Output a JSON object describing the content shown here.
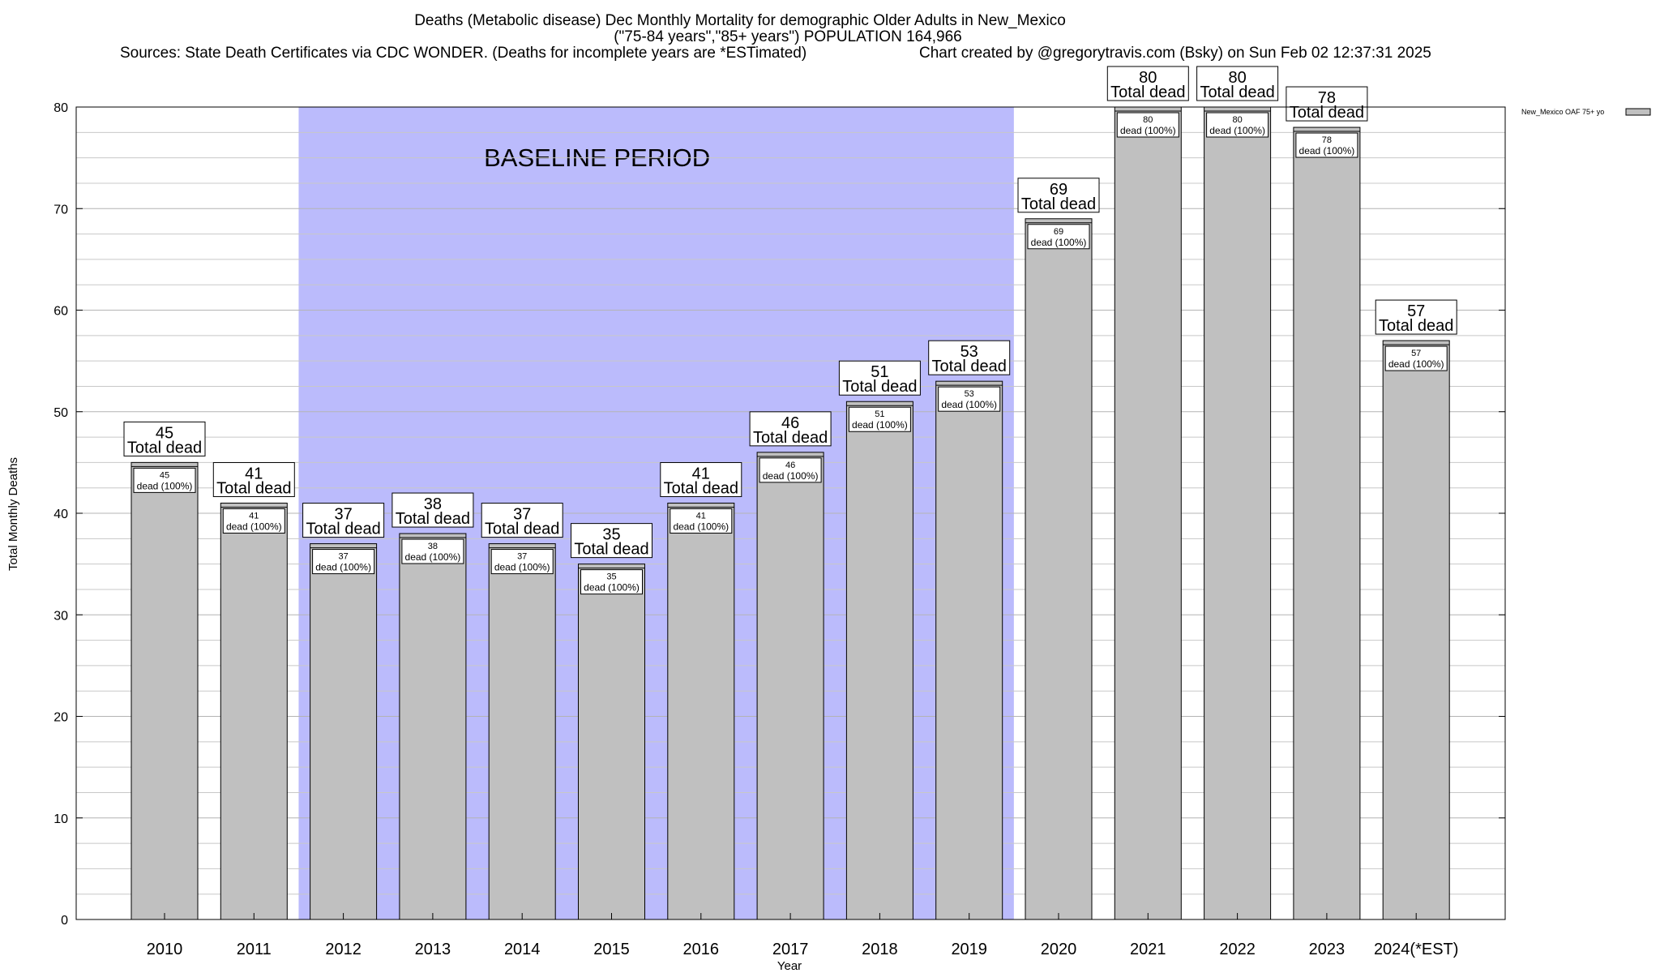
{
  "chart_data": {
    "type": "bar",
    "title_line1": "Deaths (Metabolic disease) Dec Monthly Mortality for demographic Older Adults in New_Mexico",
    "title_line2": "(\"75-84 years\",\"85+ years\") POPULATION 164,966",
    "title_line3_left": "Sources: State Death Certificates via CDC WONDER. (Deaths for incomplete years are *ESTimated)",
    "title_line3_right": "Chart created by @gregorytravis.com (Bsky) on Sun Feb 02 12:37:31 2025",
    "xlabel": "Year",
    "ylabel": "Total Monthly Deaths",
    "ylim": [
      0,
      80
    ],
    "yticks": [
      0,
      10,
      20,
      30,
      40,
      50,
      60,
      70,
      80
    ],
    "categories": [
      "2010",
      "2011",
      "2012",
      "2013",
      "2014",
      "2015",
      "2016",
      "2017",
      "2018",
      "2019",
      "2020",
      "2021",
      "2022",
      "2023",
      "2024(*EST)"
    ],
    "values": [
      45,
      41,
      37,
      38,
      37,
      35,
      41,
      46,
      51,
      53,
      69,
      80,
      80,
      78,
      57
    ],
    "inner_labels": [
      "45",
      "41",
      "37",
      "38",
      "37",
      "35",
      "41",
      "46",
      "51",
      "53",
      "69",
      "80",
      "80",
      "78",
      "57"
    ],
    "inner_label_suffix": "dead (100%)",
    "outer_label_suffix": "Total dead",
    "legend": "New_Mexico OAF 75+ yo",
    "legend_position": "top-right",
    "baseline_label": "BASELINE PERIOD",
    "baseline_range": [
      "2012",
      "2019"
    ],
    "colors": {
      "bar": "#c0c0c0",
      "baseline": "#bbbbfc",
      "grid": "#c8c8c8"
    }
  }
}
